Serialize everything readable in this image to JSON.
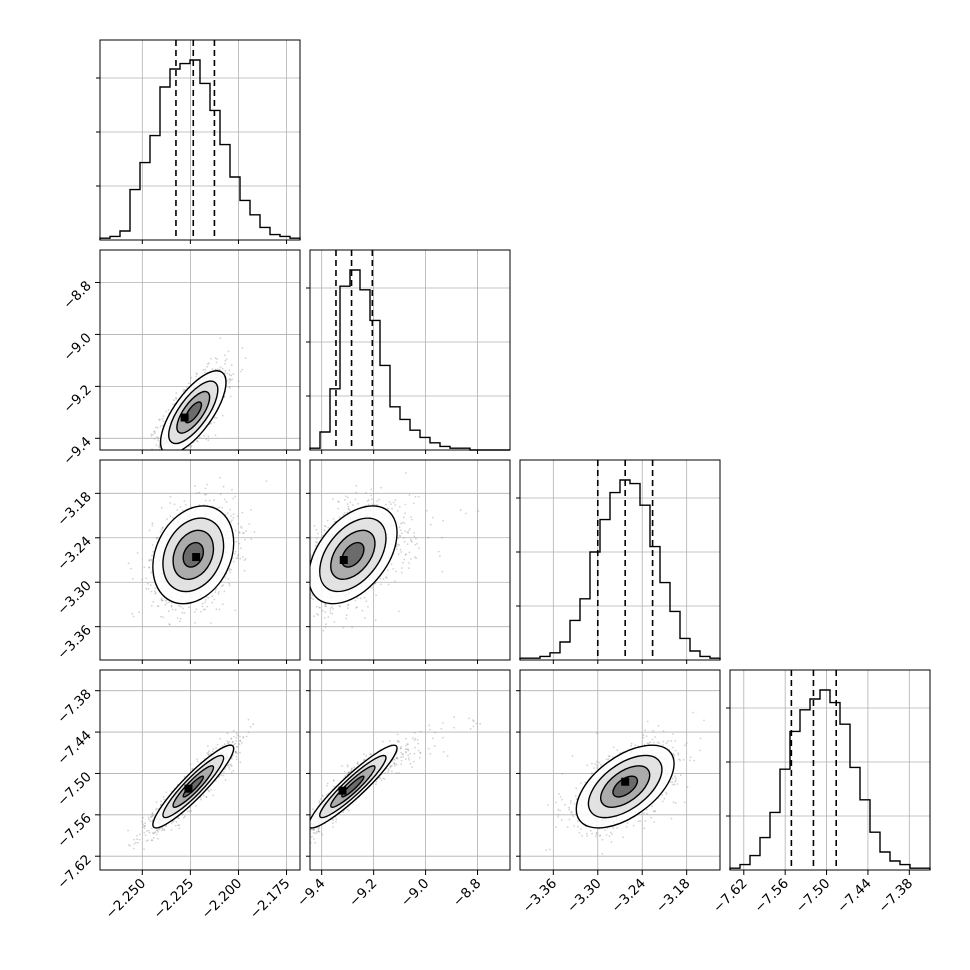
{
  "chart_data": {
    "type": "corner",
    "parameters": [
      "",
      "",
      "",
      ""
    ],
    "ranges": [
      [
        -2.272,
        -2.168
      ],
      [
        -9.445,
        -8.675
      ],
      [
        -3.405,
        -3.135
      ],
      [
        -7.64,
        -7.35
      ]
    ],
    "ticks": [
      {
        "values": [
          -2.25,
          -2.225,
          -2.2,
          -2.175
        ],
        "labels": [
          "−2.250",
          "−2.225",
          "−2.200",
          "−2.175"
        ]
      },
      {
        "values": [
          -9.4,
          -9.2,
          -9.0,
          -8.8
        ],
        "labels": [
          "−9.4",
          "−9.2",
          "−9.0",
          "−8.8"
        ]
      },
      {
        "values": [
          -3.36,
          -3.3,
          -3.24,
          -3.18
        ],
        "labels": [
          "−3.36",
          "−3.30",
          "−3.24",
          "−3.18"
        ]
      },
      {
        "values": [
          -7.62,
          -7.56,
          -7.5,
          -7.44,
          -7.38
        ],
        "labels": [
          "−7.62",
          "−7.56",
          "−7.50",
          "−7.44",
          "−7.38"
        ]
      }
    ],
    "grid": true,
    "quantiles": [
      [
        -2.2325,
        -2.2235,
        -2.2125
      ],
      [
        -9.345,
        -9.285,
        -9.205
      ],
      [
        -3.3,
        -3.263,
        -3.226
      ],
      [
        -7.551,
        -7.519,
        -7.486
      ]
    ],
    "histograms": [
      {
        "values": [
          0.01,
          0.02,
          0.05,
          0.28,
          0.43,
          0.58,
          0.85,
          0.95,
          0.98,
          1.0,
          0.87,
          0.72,
          0.53,
          0.35,
          0.22,
          0.14,
          0.07,
          0.03,
          0.02,
          0.01
        ]
      },
      {
        "values": [
          0.01,
          0.1,
          0.34,
          0.91,
          1.0,
          0.89,
          0.72,
          0.47,
          0.24,
          0.17,
          0.11,
          0.07,
          0.04,
          0.02,
          0.01,
          0.01,
          0.0,
          0.0,
          0.0,
          0.0
        ]
      },
      {
        "values": [
          0.01,
          0.01,
          0.02,
          0.04,
          0.1,
          0.22,
          0.34,
          0.6,
          0.78,
          0.93,
          1.0,
          0.98,
          0.86,
          0.63,
          0.43,
          0.27,
          0.12,
          0.05,
          0.02,
          0.01
        ]
      },
      {
        "values": [
          0.01,
          0.03,
          0.08,
          0.18,
          0.32,
          0.56,
          0.77,
          0.89,
          0.95,
          1.0,
          0.93,
          0.81,
          0.57,
          0.39,
          0.21,
          0.1,
          0.05,
          0.03,
          0.01,
          0.01
        ]
      }
    ],
    "pairs": [
      {
        "x": 0,
        "y": 1,
        "mean": [
          -2.2235,
          -9.3
        ],
        "sd": [
          0.0085,
          0.08
        ],
        "corr": 0.72,
        "peak": [
          -2.228,
          -9.32
        ]
      },
      {
        "x": 0,
        "y": 2,
        "mean": [
          -2.2235,
          -3.263
        ],
        "sd": [
          0.0105,
          0.033
        ],
        "corr": 0.25,
        "peak": [
          -2.222,
          -3.266
        ]
      },
      {
        "x": 1,
        "y": 2,
        "mean": [
          -9.28,
          -3.263
        ],
        "sd": [
          0.085,
          0.033
        ],
        "corr": 0.45,
        "peak": [
          -9.315,
          -3.27
        ]
      },
      {
        "x": 0,
        "y": 3,
        "mean": [
          -2.2235,
          -7.519
        ],
        "sd": [
          0.0105,
          0.03
        ],
        "corr": 0.92,
        "peak": [
          -2.226,
          -7.522
        ]
      },
      {
        "x": 1,
        "y": 3,
        "mean": [
          -9.28,
          -7.519
        ],
        "sd": [
          0.085,
          0.03
        ],
        "corr": 0.93,
        "peak": [
          -9.32,
          -7.525
        ]
      },
      {
        "x": 2,
        "y": 3,
        "mean": [
          -3.263,
          -7.519
        ],
        "sd": [
          0.033,
          0.03
        ],
        "corr": 0.55,
        "peak": [
          -3.263,
          -7.512
        ]
      }
    ],
    "contour_levels": [
      0.5,
      1.0,
      1.5,
      2.0
    ],
    "colors": {
      "line": "#000000",
      "grid": "#b0b0b0",
      "points": "#808080",
      "fill_dark": "#333333"
    }
  }
}
